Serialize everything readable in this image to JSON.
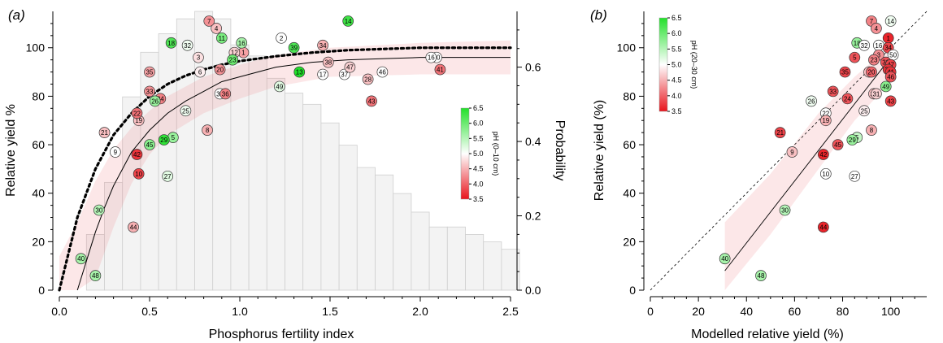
{
  "panels": [
    {
      "label": "(a)",
      "xlabel": "Phosphorus fertility index",
      "ylabel_left": "Relative yield %",
      "ylabel_right": "Probability",
      "colorbar_title": "pH (0–10 cm)",
      "colorbar_ticks": [
        "6.5",
        "6.0",
        "5.5",
        "5.0",
        "4.5",
        "4.0",
        "3.5"
      ]
    },
    {
      "label": "(b)",
      "xlabel": "Modelled relative yield (%)",
      "ylabel_left": "Relative yield (%)",
      "colorbar_title": "pH (20–30 cm)",
      "colorbar_ticks": [
        "6.5",
        "6.0",
        "5.5",
        "5.0",
        "4.5",
        "4.0",
        "3.5"
      ]
    }
  ],
  "chart_data": [
    {
      "type": "scatter",
      "title": "",
      "xlabel": "Phosphorus fertility index",
      "ylabel": "Relative yield %",
      "y2label": "Probability",
      "xlim": [
        0,
        2.5
      ],
      "ylim": [
        0,
        115
      ],
      "y2lim": [
        0,
        0.75
      ],
      "xticks": [
        "0.0",
        "0.5",
        "1.0",
        "1.5",
        "2.0",
        "2.5"
      ],
      "yticks": [
        "0",
        "20",
        "40",
        "60",
        "80",
        "100"
      ],
      "y2ticks": [
        "0.0",
        "0.2",
        "0.4",
        "0.6"
      ],
      "grid": false,
      "colorscale": {
        "name": "pH (0–10 cm)",
        "min": 3.5,
        "max": 6.5,
        "low": "#e8141c",
        "mid": "#ffffff",
        "high": "#22e02a"
      },
      "histogram": {
        "bin_width": 0.1,
        "x_start": 0.15,
        "probabilities": [
          0.15,
          0.29,
          0.52,
          0.64,
          0.69,
          0.73,
          0.75,
          0.73,
          0.66,
          0.63,
          0.57,
          0.53,
          0.5,
          0.45,
          0.39,
          0.33,
          0.31,
          0.26,
          0.21,
          0.17,
          0.17,
          0.15,
          0.13,
          0.11
        ]
      },
      "curves": [
        {
          "name": "",
          "style": "solid",
          "x": [
            0.1,
            0.15,
            0.2,
            0.25,
            0.3,
            0.35,
            0.4,
            0.5,
            0.6,
            0.7,
            0.8,
            0.9,
            1.0,
            1.2,
            1.4,
            1.6,
            1.8,
            2.0,
            2.25,
            2.5
          ],
          "y": [
            0,
            12,
            24,
            34,
            43,
            50,
            57,
            66,
            73,
            78,
            82,
            86,
            88,
            92,
            94,
            95,
            95.5,
            96,
            96,
            96
          ]
        },
        {
          "name": "",
          "style": "dotted",
          "x": [
            0.0,
            0.05,
            0.1,
            0.15,
            0.2,
            0.25,
            0.3,
            0.4,
            0.5,
            0.6,
            0.7,
            0.8,
            0.9,
            1.0,
            1.2,
            1.4,
            1.6,
            1.8,
            2.0,
            2.25,
            2.5
          ],
          "y": [
            0,
            15,
            30,
            40,
            50,
            57,
            64,
            73,
            80,
            85,
            88.5,
            91,
            93,
            94.5,
            96.5,
            98,
            99,
            99.5,
            100,
            100,
            100
          ]
        }
      ],
      "band": {
        "x": [
          0.0,
          0.1,
          0.2,
          0.3,
          0.4,
          0.5,
          0.6,
          0.8,
          1.0,
          1.2,
          1.5,
          2.0,
          2.5
        ],
        "upper": [
          14,
          28,
          45,
          58,
          67,
          74,
          80,
          88,
          93,
          97,
          100,
          102,
          103
        ],
        "lower": [
          0,
          0,
          5,
          26,
          44,
          56,
          64,
          73,
          79,
          84,
          88,
          89,
          89
        ]
      },
      "points": [
        {
          "id": "1",
          "x": 1.02,
          "y": 98,
          "ph": 4.4
        },
        {
          "id": "2",
          "x": 1.23,
          "y": 104,
          "ph": 5.0
        },
        {
          "id": "3",
          "x": 0.77,
          "y": 96,
          "ph": 4.8
        },
        {
          "id": "4",
          "x": 0.87,
          "y": 108,
          "ph": 4.6
        },
        {
          "id": "5",
          "x": 0.63,
          "y": 63,
          "ph": 5.7
        },
        {
          "id": "6",
          "x": 0.78,
          "y": 90,
          "ph": 4.9
        },
        {
          "id": "7",
          "x": 0.83,
          "y": 111,
          "ph": 4.3
        },
        {
          "id": "8",
          "x": 0.82,
          "y": 66,
          "ph": 4.5
        },
        {
          "id": "9",
          "x": 0.31,
          "y": 57,
          "ph": 5.0
        },
        {
          "id": "10",
          "x": 0.44,
          "y": 48,
          "ph": 3.8
        },
        {
          "id": "11",
          "x": 0.9,
          "y": 104,
          "ph": 5.9
        },
        {
          "id": "12",
          "x": 0.97,
          "y": 98,
          "ph": 4.7
        },
        {
          "id": "13",
          "x": 1.33,
          "y": 90,
          "ph": 6.5
        },
        {
          "id": "14",
          "x": 1.6,
          "y": 111,
          "ph": 6.3
        },
        {
          "id": "16",
          "x": 1.01,
          "y": 102,
          "ph": 5.6
        },
        {
          "id": "17",
          "x": 1.46,
          "y": 89,
          "ph": 5.0
        },
        {
          "id": "18",
          "x": 0.62,
          "y": 102,
          "ph": 6.2
        },
        {
          "id": "19",
          "x": 0.44,
          "y": 70,
          "ph": 4.6
        },
        {
          "id": "20",
          "x": 0.89,
          "y": 91,
          "ph": 4.3
        },
        {
          "id": "21",
          "x": 0.25,
          "y": 65,
          "ph": 4.6
        },
        {
          "id": "22",
          "x": 0.43,
          "y": 73,
          "ph": 4.1
        },
        {
          "id": "23",
          "x": 0.96,
          "y": 95,
          "ph": 6.0
        },
        {
          "id": "24",
          "x": 0.56,
          "y": 79,
          "ph": 4.2
        },
        {
          "id": "25",
          "x": 0.7,
          "y": 74,
          "ph": 5.1
        },
        {
          "id": "26",
          "x": 0.53,
          "y": 78,
          "ph": 5.7
        },
        {
          "id": "27",
          "x": 0.6,
          "y": 47,
          "ph": 5.2
        },
        {
          "id": "28",
          "x": 1.71,
          "y": 87,
          "ph": 4.6
        },
        {
          "id": "29",
          "x": 0.58,
          "y": 62,
          "ph": 6.4
        },
        {
          "id": "30",
          "x": 0.22,
          "y": 33,
          "ph": 5.5
        },
        {
          "id": "31",
          "x": 0.89,
          "y": 81,
          "ph": 5.0
        },
        {
          "id": "32",
          "x": 0.71,
          "y": 101,
          "ph": 5.1
        },
        {
          "id": "33",
          "x": 0.5,
          "y": 82,
          "ph": 4.3
        },
        {
          "id": "34",
          "x": 1.46,
          "y": 101,
          "ph": 4.5
        },
        {
          "id": "35",
          "x": 0.5,
          "y": 90,
          "ph": 4.4
        },
        {
          "id": "36",
          "x": 0.92,
          "y": 81,
          "ph": 4.2
        },
        {
          "id": "37",
          "x": 1.58,
          "y": 89,
          "ph": 5.0
        },
        {
          "id": "38",
          "x": 1.49,
          "y": 94,
          "ph": 4.6
        },
        {
          "id": "39",
          "x": 1.3,
          "y": 100,
          "ph": 6.2
        },
        {
          "id": "40",
          "x": 0.12,
          "y": 13,
          "ph": 5.6
        },
        {
          "id": "41",
          "x": 2.11,
          "y": 91,
          "ph": 4.1
        },
        {
          "id": "42",
          "x": 0.43,
          "y": 56,
          "ph": 3.7
        },
        {
          "id": "43",
          "x": 1.73,
          "y": 78,
          "ph": 4.1
        },
        {
          "id": "44",
          "x": 0.41,
          "y": 26,
          "ph": 4.5
        },
        {
          "id": "45",
          "x": 0.5,
          "y": 60,
          "ph": 5.8
        },
        {
          "id": "46",
          "x": 1.79,
          "y": 90,
          "ph": 5.0
        },
        {
          "id": "47",
          "x": 1.61,
          "y": 92,
          "ph": 4.7
        },
        {
          "id": "48",
          "x": 0.2,
          "y": 6,
          "ph": 5.6
        },
        {
          "id": "49",
          "x": 1.22,
          "y": 84,
          "ph": 5.2
        },
        {
          "id": "50",
          "x": 2.09,
          "y": 96,
          "ph": 5.0
        },
        {
          "id": "16",
          "x": 2.06,
          "y": 96,
          "ph": 5.0
        }
      ]
    },
    {
      "type": "scatter",
      "title": "",
      "xlabel": "Modelled relative yield (%)",
      "ylabel": "Relative yield (%)",
      "xlim": [
        0,
        115
      ],
      "ylim": [
        0,
        115
      ],
      "xticks": [
        "0",
        "20",
        "40",
        "60",
        "80",
        "100"
      ],
      "yticks": [
        "0",
        "20",
        "40",
        "60",
        "80",
        "100"
      ],
      "grid": false,
      "reference_line": {
        "style": "dashed",
        "x": [
          0,
          115
        ],
        "y": [
          0,
          115
        ]
      },
      "fit_line": {
        "style": "solid",
        "x": [
          31,
          100
        ],
        "y": [
          8,
          96
        ]
      },
      "band": {
        "x": [
          31,
          50,
          70,
          85,
          100
        ],
        "upper": [
          28,
          48,
          73,
          88,
          101
        ],
        "lower": [
          0,
          23,
          50,
          70,
          86
        ]
      },
      "colorscale": {
        "name": "pH (20–30 cm)",
        "min": 3.5,
        "max": 6.5,
        "low": "#e8141c",
        "mid": "#ffffff",
        "high": "#22e02a"
      },
      "points": [
        {
          "id": "14",
          "x": 100,
          "y": 111,
          "ph": 5.1
        },
        {
          "id": "7",
          "x": 92,
          "y": 111,
          "ph": 4.2
        },
        {
          "id": "4",
          "x": 94,
          "y": 108,
          "ph": 4.3
        },
        {
          "id": "1",
          "x": 99,
          "y": 104,
          "ph": 3.6
        },
        {
          "id": "18",
          "x": 86,
          "y": 102,
          "ph": 5.7
        },
        {
          "id": "32",
          "x": 89,
          "y": 101,
          "ph": 5.0
        },
        {
          "id": "16",
          "x": 95,
          "y": 101,
          "ph": 5.0
        },
        {
          "id": "34",
          "x": 99,
          "y": 100,
          "ph": 3.8
        },
        {
          "id": "3",
          "x": 95,
          "y": 97,
          "ph": 4.3
        },
        {
          "id": "50",
          "x": 101,
          "y": 97,
          "ph": 5.0
        },
        {
          "id": "5",
          "x": 85,
          "y": 96,
          "ph": 3.9
        },
        {
          "id": "23",
          "x": 93,
          "y": 95,
          "ph": 4.2
        },
        {
          "id": "38",
          "x": 98,
          "y": 94,
          "ph": 3.9
        },
        {
          "id": "47",
          "x": 100,
          "y": 93,
          "ph": 3.8
        },
        {
          "id": "28",
          "x": 99,
          "y": 91,
          "ph": 3.7
        },
        {
          "id": "35",
          "x": 81,
          "y": 90,
          "ph": 3.8
        },
        {
          "id": "6",
          "x": 91,
          "y": 90,
          "ph": 4.6
        },
        {
          "id": "20",
          "x": 92,
          "y": 90,
          "ph": 4.0
        },
        {
          "id": "41",
          "x": 100,
          "y": 90,
          "ph": 3.7
        },
        {
          "id": "46",
          "x": 100,
          "y": 88,
          "ph": 3.9
        },
        {
          "id": "49",
          "x": 98,
          "y": 84,
          "ph": 5.8
        },
        {
          "id": "36",
          "x": 93,
          "y": 81,
          "ph": 4.6
        },
        {
          "id": "31",
          "x": 94,
          "y": 81,
          "ph": 4.7
        },
        {
          "id": "33",
          "x": 76,
          "y": 82,
          "ph": 3.9
        },
        {
          "id": "24",
          "x": 82,
          "y": 79,
          "ph": 3.9
        },
        {
          "id": "43",
          "x": 100,
          "y": 78,
          "ph": 3.8
        },
        {
          "id": "26",
          "x": 67,
          "y": 78,
          "ph": 5.1
        },
        {
          "id": "25",
          "x": 89,
          "y": 74,
          "ph": 4.9
        },
        {
          "id": "22",
          "x": 73,
          "y": 73,
          "ph": 5.0
        },
        {
          "id": "19",
          "x": 73,
          "y": 70,
          "ph": 4.5
        },
        {
          "id": "8",
          "x": 92,
          "y": 66,
          "ph": 4.5
        },
        {
          "id": "21",
          "x": 54,
          "y": 65,
          "ph": 3.8
        },
        {
          "id": "5",
          "x": 86,
          "y": 63,
          "ph": 5.4
        },
        {
          "id": "29",
          "x": 84,
          "y": 62,
          "ph": 5.7
        },
        {
          "id": "45",
          "x": 78,
          "y": 60,
          "ph": 3.9
        },
        {
          "id": "9",
          "x": 59,
          "y": 57,
          "ph": 4.6
        },
        {
          "id": "42",
          "x": 72,
          "y": 56,
          "ph": 3.6
        },
        {
          "id": "10",
          "x": 73,
          "y": 48,
          "ph": 5.0
        },
        {
          "id": "27",
          "x": 85,
          "y": 47,
          "ph": 5.0
        },
        {
          "id": "30",
          "x": 56,
          "y": 33,
          "ph": 5.5
        },
        {
          "id": "44",
          "x": 72,
          "y": 26,
          "ph": 3.6
        },
        {
          "id": "40",
          "x": 31,
          "y": 13,
          "ph": 5.6
        },
        {
          "id": "48",
          "x": 46,
          "y": 6,
          "ph": 5.6
        }
      ]
    }
  ]
}
